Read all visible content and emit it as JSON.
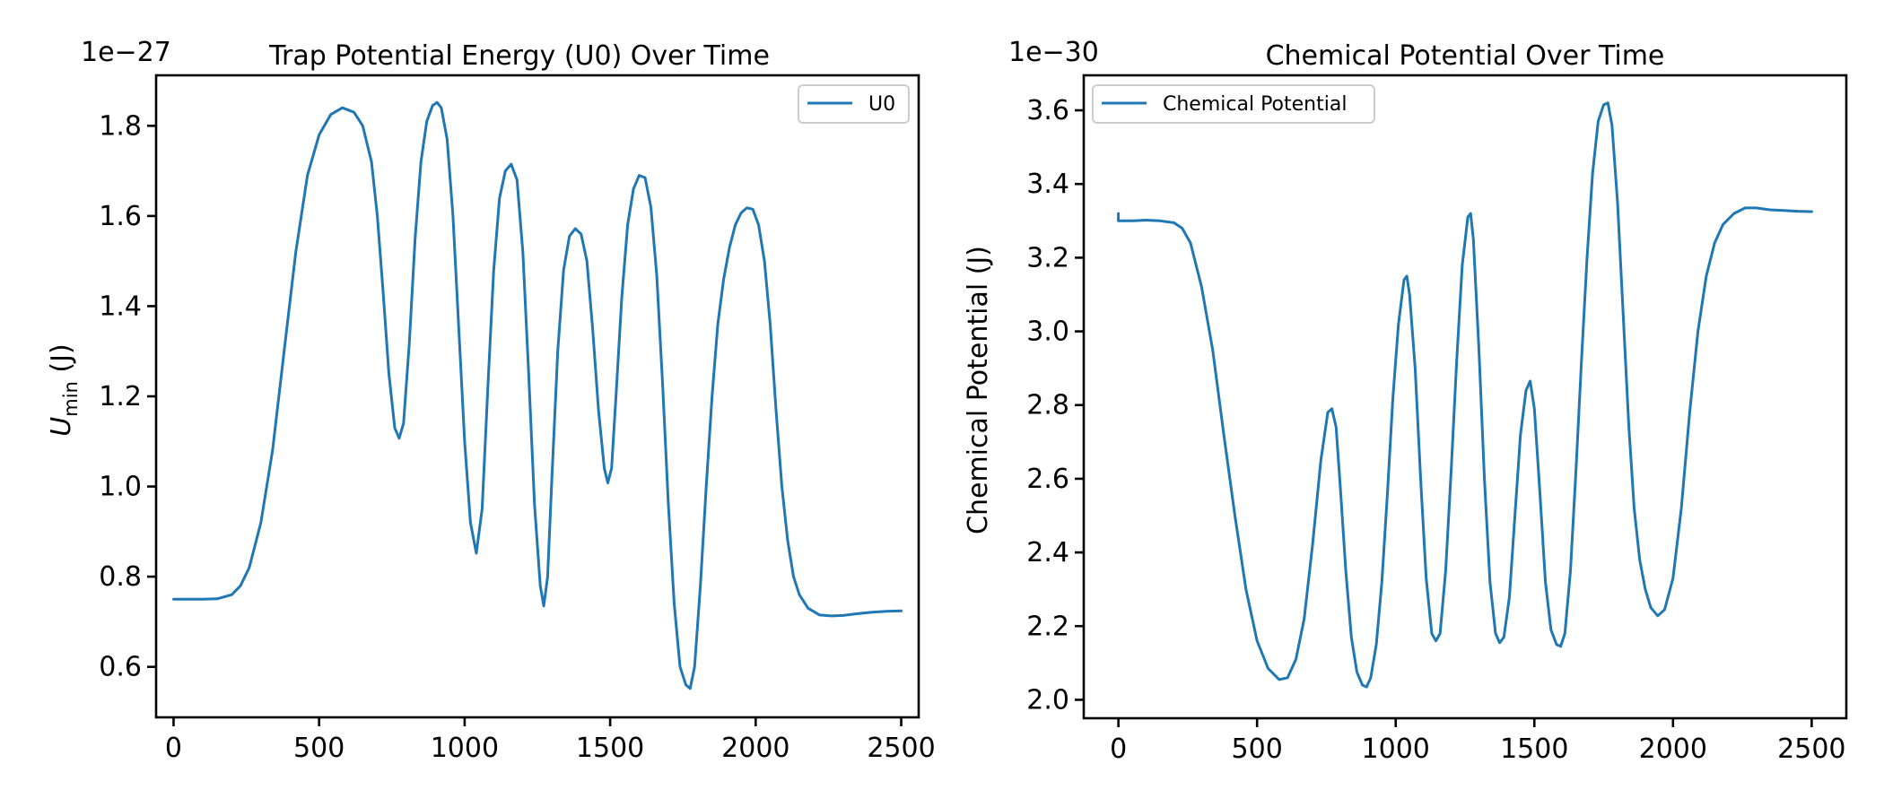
{
  "colors": {
    "series": "#1f77b4",
    "axis": "#000000"
  },
  "chart_data": [
    {
      "type": "line",
      "title": "Trap Potential Energy (U0) Over Time",
      "xlabel": "",
      "ylabel_main": "U",
      "ylabel_sub": "min",
      "ylabel_unit": " (J)",
      "offset_text": "1e−27",
      "legend": "top-right",
      "grid": false,
      "xlim": [
        -60,
        2560
      ],
      "ylim": [
        0.488,
        1.912
      ],
      "xticks": [
        0,
        500,
        1000,
        1500,
        2000,
        2500
      ],
      "xtick_labels": [
        "0",
        "500",
        "1000",
        "1500",
        "2000",
        "2500"
      ],
      "yticks": [
        0.6,
        0.8,
        1.0,
        1.2,
        1.4,
        1.6,
        1.8
      ],
      "ytick_labels": [
        "0.6",
        "0.8",
        "1.0",
        "1.2",
        "1.4",
        "1.6",
        "1.8"
      ],
      "series": [
        {
          "name": "U0",
          "color": "#1f77b4",
          "points": [
            [
              0,
              0.75
            ],
            [
              100,
              0.75
            ],
            [
              150,
              0.751
            ],
            [
              200,
              0.76
            ],
            [
              230,
              0.78
            ],
            [
              260,
              0.82
            ],
            [
              300,
              0.92
            ],
            [
              340,
              1.08
            ],
            [
              380,
              1.3
            ],
            [
              420,
              1.52
            ],
            [
              460,
              1.69
            ],
            [
              500,
              1.78
            ],
            [
              540,
              1.825
            ],
            [
              580,
              1.84
            ],
            [
              620,
              1.83
            ],
            [
              650,
              1.8
            ],
            [
              680,
              1.72
            ],
            [
              700,
              1.6
            ],
            [
              720,
              1.43
            ],
            [
              740,
              1.25
            ],
            [
              760,
              1.13
            ],
            [
              775,
              1.107
            ],
            [
              790,
              1.14
            ],
            [
              810,
              1.32
            ],
            [
              830,
              1.55
            ],
            [
              850,
              1.72
            ],
            [
              870,
              1.81
            ],
            [
              890,
              1.845
            ],
            [
              905,
              1.852
            ],
            [
              920,
              1.84
            ],
            [
              940,
              1.77
            ],
            [
              960,
              1.6
            ],
            [
              980,
              1.35
            ],
            [
              1000,
              1.1
            ],
            [
              1020,
              0.92
            ],
            [
              1040,
              0.852
            ],
            [
              1060,
              0.95
            ],
            [
              1080,
              1.22
            ],
            [
              1100,
              1.48
            ],
            [
              1120,
              1.64
            ],
            [
              1140,
              1.7
            ],
            [
              1160,
              1.715
            ],
            [
              1180,
              1.68
            ],
            [
              1200,
              1.52
            ],
            [
              1220,
              1.25
            ],
            [
              1240,
              0.96
            ],
            [
              1260,
              0.78
            ],
            [
              1272,
              0.735
            ],
            [
              1285,
              0.8
            ],
            [
              1300,
              1.02
            ],
            [
              1320,
              1.3
            ],
            [
              1340,
              1.48
            ],
            [
              1360,
              1.555
            ],
            [
              1380,
              1.572
            ],
            [
              1400,
              1.56
            ],
            [
              1420,
              1.5
            ],
            [
              1440,
              1.35
            ],
            [
              1460,
              1.17
            ],
            [
              1480,
              1.04
            ],
            [
              1492,
              1.008
            ],
            [
              1505,
              1.04
            ],
            [
              1520,
              1.2
            ],
            [
              1540,
              1.42
            ],
            [
              1560,
              1.58
            ],
            [
              1580,
              1.66
            ],
            [
              1600,
              1.69
            ],
            [
              1620,
              1.685
            ],
            [
              1640,
              1.62
            ],
            [
              1660,
              1.47
            ],
            [
              1680,
              1.23
            ],
            [
              1700,
              0.96
            ],
            [
              1720,
              0.74
            ],
            [
              1740,
              0.6
            ],
            [
              1760,
              0.56
            ],
            [
              1775,
              0.552
            ],
            [
              1790,
              0.6
            ],
            [
              1810,
              0.78
            ],
            [
              1830,
              1.0
            ],
            [
              1850,
              1.2
            ],
            [
              1870,
              1.36
            ],
            [
              1890,
              1.46
            ],
            [
              1910,
              1.53
            ],
            [
              1930,
              1.58
            ],
            [
              1950,
              1.607
            ],
            [
              1970,
              1.618
            ],
            [
              1990,
              1.615
            ],
            [
              2010,
              1.58
            ],
            [
              2030,
              1.5
            ],
            [
              2050,
              1.36
            ],
            [
              2070,
              1.17
            ],
            [
              2090,
              1.0
            ],
            [
              2110,
              0.88
            ],
            [
              2130,
              0.8
            ],
            [
              2150,
              0.76
            ],
            [
              2180,
              0.73
            ],
            [
              2220,
              0.715
            ],
            [
              2260,
              0.713
            ],
            [
              2300,
              0.714
            ],
            [
              2350,
              0.718
            ],
            [
              2400,
              0.721
            ],
            [
              2450,
              0.723
            ],
            [
              2500,
              0.724
            ]
          ]
        }
      ]
    },
    {
      "type": "line",
      "title": "Chemical Potential Over Time",
      "xlabel": "",
      "ylabel": "Chemical Potential (J)",
      "offset_text": "1e−30",
      "legend": "top-left",
      "grid": false,
      "xlim": [
        -125,
        2625
      ],
      "ylim": [
        1.95,
        3.695
      ],
      "xticks": [
        0,
        500,
        1000,
        1500,
        2000,
        2500
      ],
      "xtick_labels": [
        "0",
        "500",
        "1000",
        "1500",
        "2000",
        "2500"
      ],
      "yticks": [
        2.0,
        2.2,
        2.4,
        2.6,
        2.8,
        3.0,
        3.2,
        3.4,
        3.6
      ],
      "ytick_labels": [
        "2.0",
        "2.2",
        "2.4",
        "2.6",
        "2.8",
        "3.0",
        "3.2",
        "3.4",
        "3.6"
      ],
      "series": [
        {
          "name": "Chemical Potential",
          "color": "#1f77b4",
          "points": [
            [
              0,
              3.32
            ],
            [
              0,
              3.3
            ],
            [
              50,
              3.3
            ],
            [
              100,
              3.302
            ],
            [
              150,
              3.3
            ],
            [
              200,
              3.295
            ],
            [
              230,
              3.28
            ],
            [
              260,
              3.24
            ],
            [
              300,
              3.12
            ],
            [
              340,
              2.95
            ],
            [
              380,
              2.72
            ],
            [
              420,
              2.5
            ],
            [
              460,
              2.3
            ],
            [
              500,
              2.16
            ],
            [
              540,
              2.085
            ],
            [
              580,
              2.055
            ],
            [
              610,
              2.06
            ],
            [
              640,
              2.11
            ],
            [
              670,
              2.22
            ],
            [
              700,
              2.42
            ],
            [
              730,
              2.65
            ],
            [
              755,
              2.78
            ],
            [
              770,
              2.79
            ],
            [
              785,
              2.74
            ],
            [
              800,
              2.58
            ],
            [
              820,
              2.35
            ],
            [
              840,
              2.17
            ],
            [
              860,
              2.075
            ],
            [
              880,
              2.04
            ],
            [
              895,
              2.035
            ],
            [
              910,
              2.06
            ],
            [
              930,
              2.15
            ],
            [
              950,
              2.32
            ],
            [
              970,
              2.56
            ],
            [
              990,
              2.82
            ],
            [
              1010,
              3.02
            ],
            [
              1030,
              3.14
            ],
            [
              1040,
              3.15
            ],
            [
              1050,
              3.1
            ],
            [
              1070,
              2.9
            ],
            [
              1090,
              2.6
            ],
            [
              1110,
              2.33
            ],
            [
              1130,
              2.18
            ],
            [
              1145,
              2.16
            ],
            [
              1160,
              2.18
            ],
            [
              1180,
              2.35
            ],
            [
              1200,
              2.62
            ],
            [
              1220,
              2.92
            ],
            [
              1240,
              3.18
            ],
            [
              1260,
              3.31
            ],
            [
              1270,
              3.32
            ],
            [
              1280,
              3.25
            ],
            [
              1300,
              2.95
            ],
            [
              1320,
              2.6
            ],
            [
              1340,
              2.32
            ],
            [
              1360,
              2.18
            ],
            [
              1375,
              2.155
            ],
            [
              1390,
              2.17
            ],
            [
              1410,
              2.28
            ],
            [
              1430,
              2.5
            ],
            [
              1450,
              2.72
            ],
            [
              1470,
              2.84
            ],
            [
              1485,
              2.865
            ],
            [
              1500,
              2.79
            ],
            [
              1520,
              2.56
            ],
            [
              1540,
              2.32
            ],
            [
              1560,
              2.19
            ],
            [
              1580,
              2.15
            ],
            [
              1595,
              2.145
            ],
            [
              1610,
              2.18
            ],
            [
              1630,
              2.35
            ],
            [
              1650,
              2.62
            ],
            [
              1670,
              2.92
            ],
            [
              1690,
              3.2
            ],
            [
              1710,
              3.43
            ],
            [
              1730,
              3.57
            ],
            [
              1750,
              3.615
            ],
            [
              1765,
              3.62
            ],
            [
              1780,
              3.56
            ],
            [
              1800,
              3.35
            ],
            [
              1820,
              3.05
            ],
            [
              1840,
              2.75
            ],
            [
              1860,
              2.52
            ],
            [
              1880,
              2.38
            ],
            [
              1900,
              2.3
            ],
            [
              1920,
              2.25
            ],
            [
              1945,
              2.228
            ],
            [
              1970,
              2.245
            ],
            [
              2000,
              2.33
            ],
            [
              2030,
              2.52
            ],
            [
              2060,
              2.78
            ],
            [
              2090,
              3.0
            ],
            [
              2120,
              3.15
            ],
            [
              2150,
              3.24
            ],
            [
              2180,
              3.29
            ],
            [
              2220,
              3.32
            ],
            [
              2260,
              3.335
            ],
            [
              2300,
              3.335
            ],
            [
              2350,
              3.33
            ],
            [
              2400,
              3.328
            ],
            [
              2450,
              3.326
            ],
            [
              2500,
              3.325
            ]
          ]
        }
      ]
    }
  ]
}
